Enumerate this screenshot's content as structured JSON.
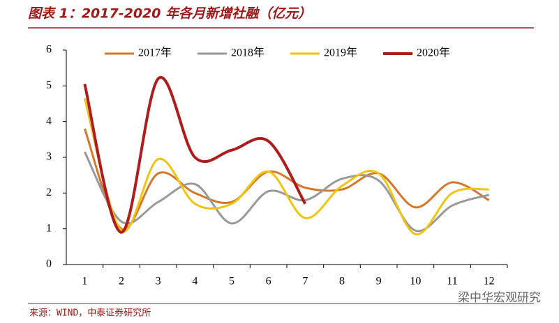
{
  "chart_data": {
    "type": "line",
    "title": "图表 1：2017-2020 年各月新增社融（亿元）",
    "source": "来源：WIND，中泰证券研究所",
    "watermark": "梁中华宏观研究",
    "categories": [
      "1",
      "2",
      "3",
      "4",
      "5",
      "6",
      "7",
      "8",
      "9",
      "10",
      "11",
      "12"
    ],
    "series": [
      {
        "name": "2017年",
        "color": "#d4792a",
        "values": [
          3.8,
          1.0,
          2.55,
          2.0,
          1.75,
          2.6,
          2.15,
          2.1,
          2.55,
          1.6,
          2.3,
          1.8
        ]
      },
      {
        "name": "2018年",
        "color": "#999999",
        "values": [
          3.15,
          1.2,
          1.75,
          2.25,
          1.15,
          2.05,
          1.8,
          2.4,
          2.35,
          0.95,
          1.65,
          1.95
        ]
      },
      {
        "name": "2019年",
        "color": "#f2c40f",
        "values": [
          4.65,
          0.95,
          2.95,
          1.7,
          1.7,
          2.6,
          1.3,
          2.2,
          2.55,
          0.85,
          2.0,
          2.1
        ]
      },
      {
        "name": "2020年",
        "color": "#b01c1c",
        "values": [
          5.05,
          0.9,
          5.2,
          3.0,
          3.2,
          3.45,
          1.7,
          null,
          null,
          null,
          null,
          null
        ]
      }
    ],
    "ylim": [
      0,
      6
    ],
    "yticks": [
      0,
      1,
      2,
      3,
      4,
      5,
      6
    ],
    "legend": "top"
  }
}
